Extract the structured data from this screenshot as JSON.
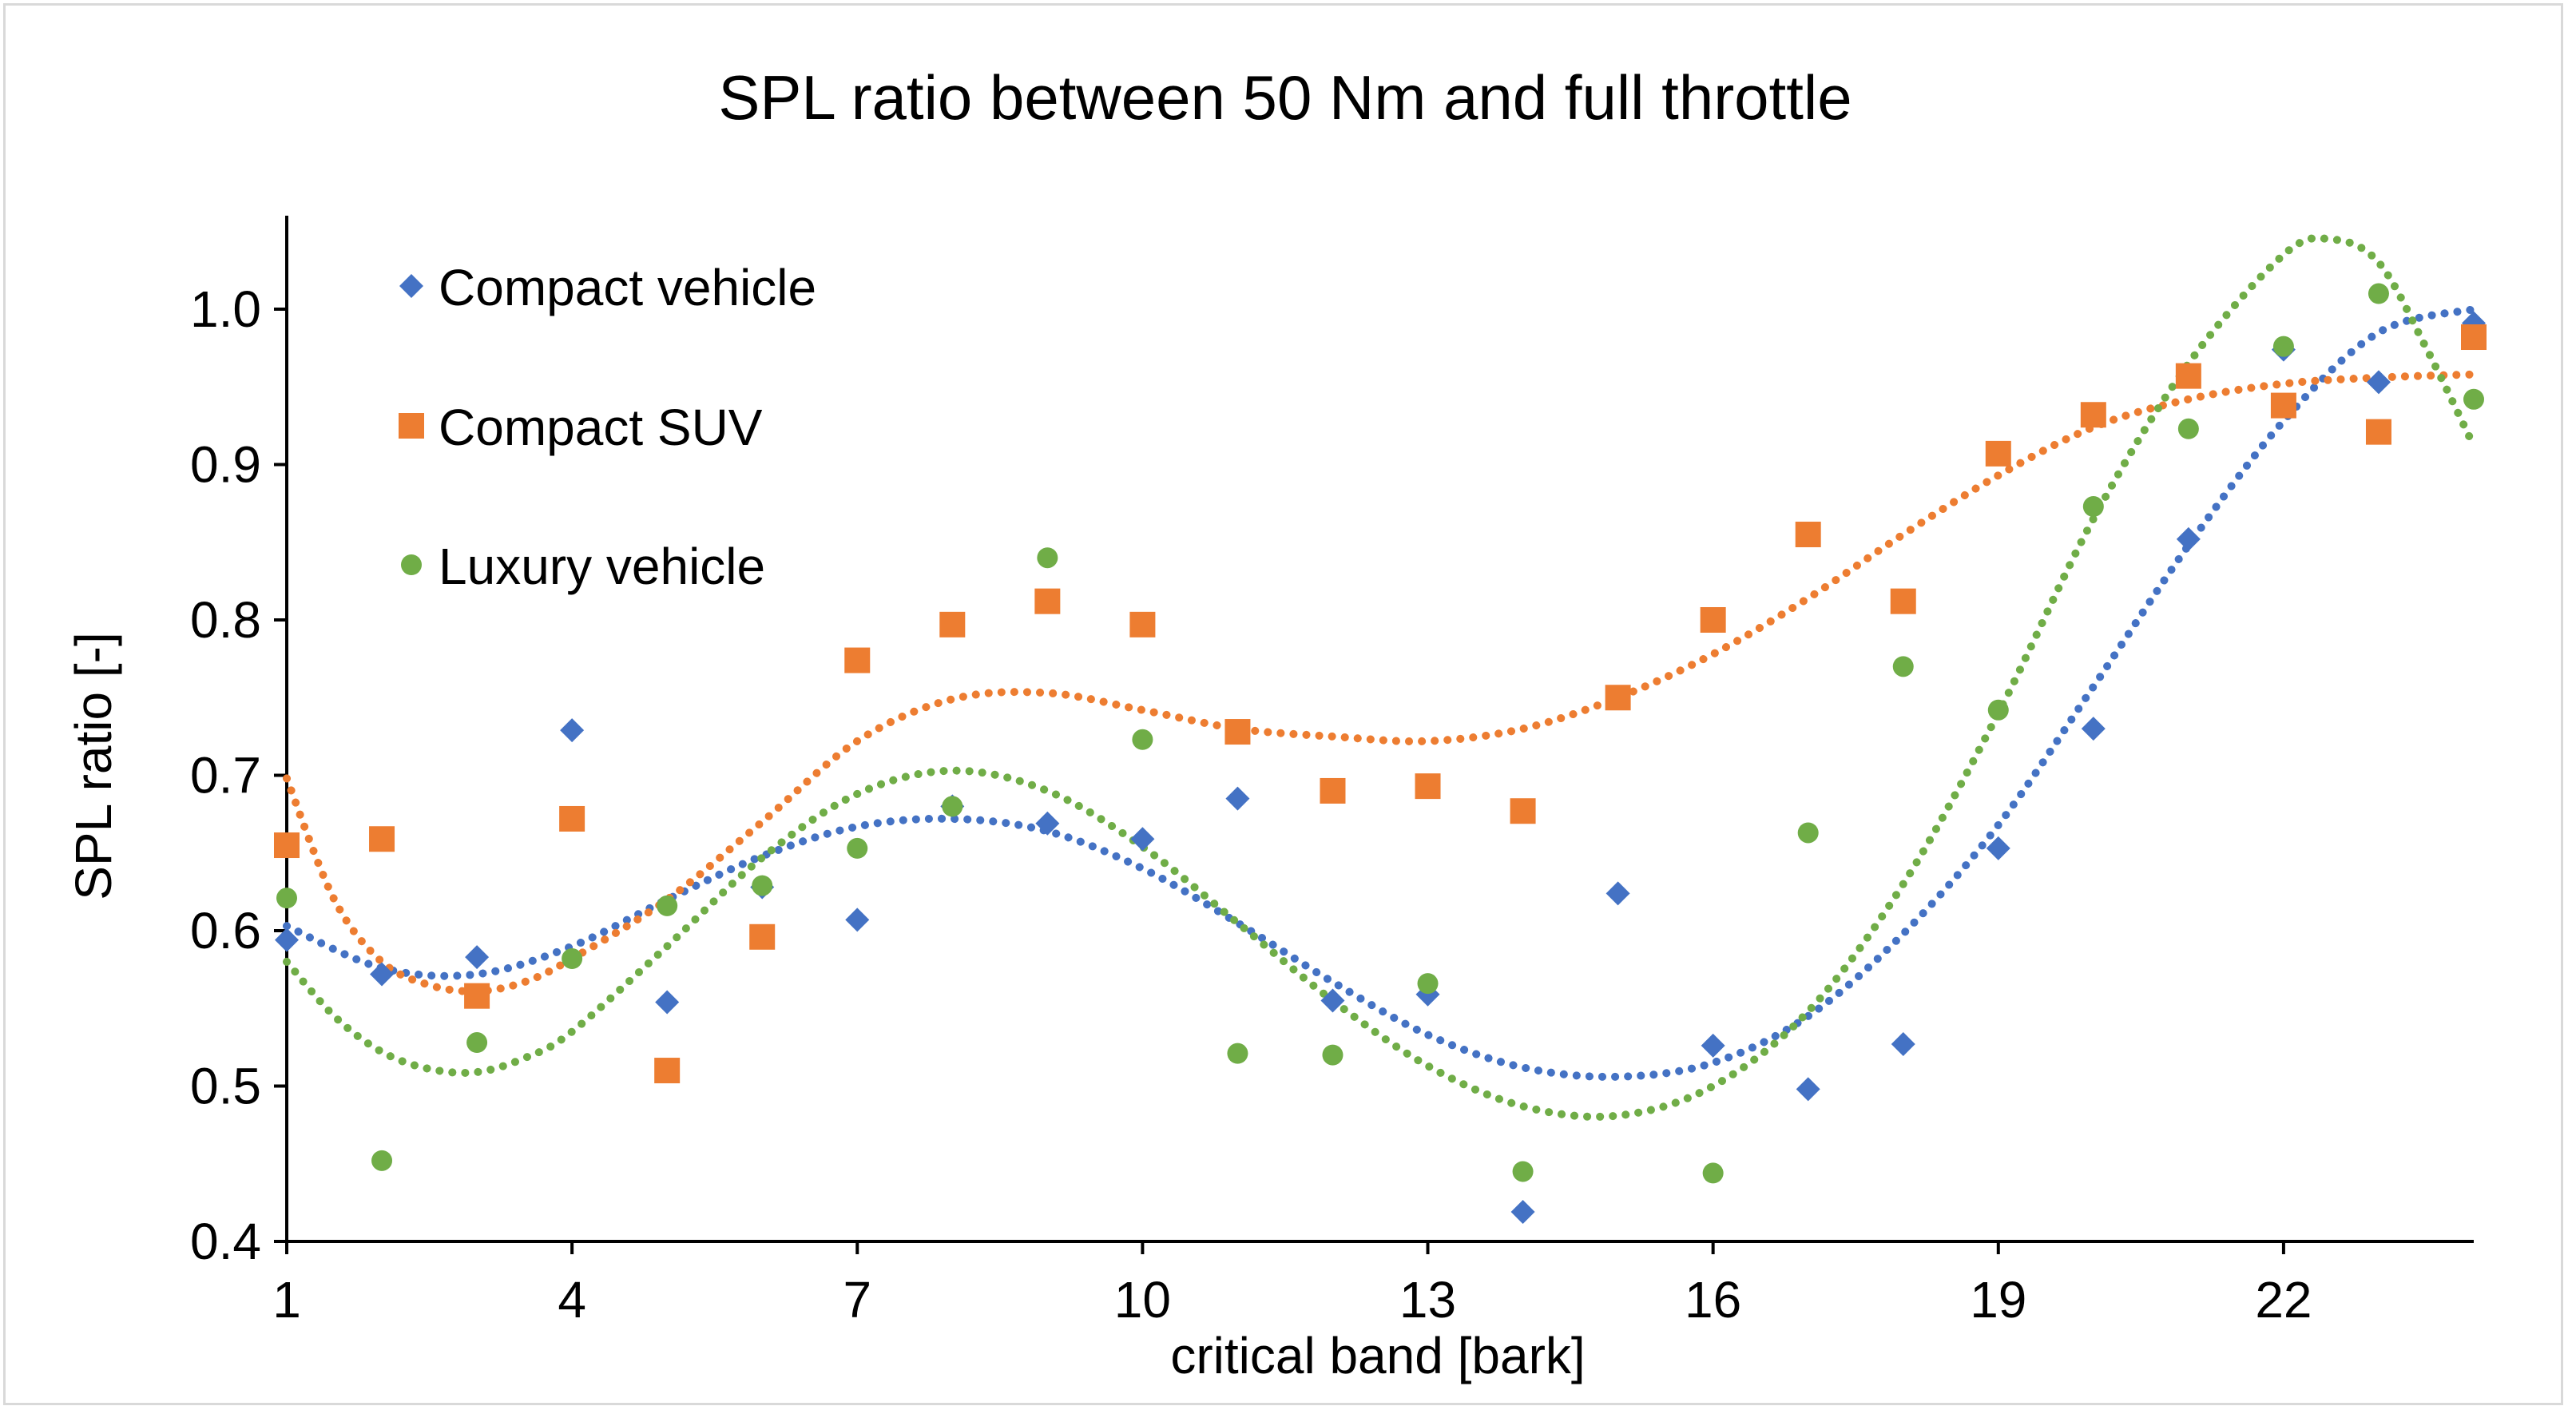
{
  "chart_data": {
    "type": "scatter",
    "title": "SPL ratio between 50 Nm and full throttle",
    "xlabel": "critical band [bark]",
    "ylabel": "SPL ratio [-]",
    "xlim": [
      1,
      24
    ],
    "ylim": [
      0.4,
      1.05
    ],
    "xticks": [
      1,
      4,
      7,
      10,
      13,
      16,
      19,
      22
    ],
    "yticks": [
      0.4,
      0.5,
      0.6,
      0.7,
      0.8,
      0.9,
      1.0
    ],
    "ytick_labels": [
      "0.4",
      "0.5",
      "0.6",
      "0.7",
      "0.8",
      "0.9",
      "1.0"
    ],
    "grid": false,
    "legend_position": "top-left",
    "trendlines": "polynomial, dotted",
    "series": [
      {
        "name": "Compact vehicle",
        "marker": "diamond",
        "color": "#4472C4",
        "x": [
          1,
          2,
          3,
          4,
          5,
          6,
          7,
          8,
          9,
          10,
          11,
          12,
          13,
          14,
          15,
          16,
          17,
          18,
          19,
          20,
          21,
          22,
          23,
          24
        ],
        "values": [
          0.594,
          0.572,
          0.583,
          0.729,
          0.554,
          0.628,
          0.607,
          0.68,
          0.669,
          0.659,
          0.685,
          0.555,
          0.559,
          0.419,
          0.624,
          0.526,
          0.498,
          0.527,
          0.653,
          0.73,
          0.852,
          0.974,
          0.953,
          0.991
        ],
        "trend": [
          [
            1,
            0.603
          ],
          [
            2,
            0.576
          ],
          [
            3,
            0.572
          ],
          [
            4,
            0.59
          ],
          [
            5,
            0.62
          ],
          [
            6,
            0.648
          ],
          [
            7,
            0.667
          ],
          [
            8,
            0.672
          ],
          [
            9,
            0.664
          ],
          [
            10,
            0.64
          ],
          [
            11,
            0.605
          ],
          [
            12,
            0.567
          ],
          [
            13,
            0.533
          ],
          [
            14,
            0.512
          ],
          [
            15,
            0.506
          ],
          [
            16,
            0.515
          ],
          [
            17,
            0.545
          ],
          [
            18,
            0.598
          ],
          [
            19,
            0.668
          ],
          [
            20,
            0.757
          ],
          [
            21,
            0.848
          ],
          [
            22,
            0.928
          ],
          [
            23,
            0.985
          ],
          [
            24,
            1.0
          ]
        ]
      },
      {
        "name": "Compact SUV",
        "marker": "square",
        "color": "#ED7D31",
        "x": [
          1,
          2,
          3,
          4,
          5,
          6,
          7,
          8,
          9,
          10,
          11,
          12,
          13,
          14,
          15,
          16,
          17,
          18,
          19,
          20,
          21,
          22,
          23,
          24
        ],
        "values": [
          0.655,
          0.659,
          0.558,
          0.672,
          0.51,
          0.596,
          0.774,
          0.797,
          0.812,
          0.797,
          0.728,
          0.69,
          0.693,
          0.677,
          0.75,
          0.8,
          0.855,
          0.812,
          0.907,
          0.932,
          0.957,
          0.938,
          0.921,
          0.982
        ],
        "trend": [
          [
            1,
            0.698
          ],
          [
            1.5,
            0.62
          ],
          [
            2,
            0.58
          ],
          [
            2.5,
            0.565
          ],
          [
            3,
            0.561
          ],
          [
            3.5,
            0.567
          ],
          [
            4,
            0.582
          ],
          [
            5,
            0.62
          ],
          [
            6,
            0.67
          ],
          [
            7,
            0.722
          ],
          [
            8,
            0.749
          ],
          [
            9,
            0.753
          ],
          [
            10,
            0.742
          ],
          [
            11,
            0.73
          ],
          [
            12,
            0.725
          ],
          [
            13,
            0.722
          ],
          [
            14,
            0.73
          ],
          [
            15,
            0.75
          ],
          [
            16,
            0.778
          ],
          [
            17,
            0.814
          ],
          [
            18,
            0.855
          ],
          [
            19,
            0.893
          ],
          [
            20,
            0.924
          ],
          [
            21,
            0.942
          ],
          [
            22,
            0.952
          ],
          [
            23,
            0.956
          ],
          [
            24,
            0.958
          ]
        ]
      },
      {
        "name": "Luxury vehicle",
        "marker": "circle",
        "color": "#70AD47",
        "x": [
          1,
          2,
          3,
          4,
          5,
          6,
          7,
          8,
          9,
          10,
          11,
          12,
          13,
          14,
          15,
          16,
          17,
          18,
          19,
          20,
          21,
          22,
          23,
          24
        ],
        "values": [
          0.621,
          0.452,
          0.528,
          0.582,
          0.616,
          0.629,
          0.653,
          0.68,
          0.84,
          0.723,
          0.521,
          0.52,
          0.566,
          0.445,
          null,
          0.444,
          0.663,
          0.77,
          0.742,
          0.873,
          0.923,
          0.976,
          1.01,
          0.942
        ],
        "trend": [
          [
            1,
            0.58
          ],
          [
            1.5,
            0.545
          ],
          [
            2,
            0.522
          ],
          [
            2.5,
            0.511
          ],
          [
            3,
            0.509
          ],
          [
            3.5,
            0.518
          ],
          [
            4,
            0.535
          ],
          [
            5,
            0.59
          ],
          [
            6,
            0.647
          ],
          [
            7,
            0.688
          ],
          [
            8,
            0.703
          ],
          [
            9,
            0.69
          ],
          [
            10,
            0.654
          ],
          [
            11,
            0.605
          ],
          [
            12,
            0.555
          ],
          [
            13,
            0.513
          ],
          [
            14,
            0.487
          ],
          [
            15,
            0.481
          ],
          [
            16,
            0.5
          ],
          [
            17,
            0.548
          ],
          [
            18,
            0.63
          ],
          [
            19,
            0.74
          ],
          [
            20,
            0.865
          ],
          [
            21,
            0.965
          ],
          [
            22,
            1.035
          ],
          [
            22.5,
            1.045
          ],
          [
            23,
            1.03
          ],
          [
            23.5,
            0.975
          ],
          [
            24,
            0.912
          ]
        ]
      }
    ]
  }
}
